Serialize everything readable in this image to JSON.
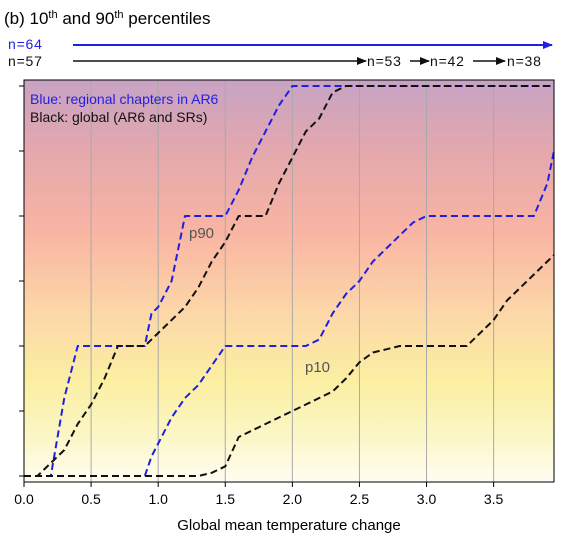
{
  "chart_data": {
    "type": "line",
    "title": {
      "prefix": "(b) 10",
      "sup1": "th",
      "mid": " and 90",
      "sup2": "th",
      "suffix": " percentiles"
    },
    "xlabel": "Global mean temperature change",
    "xlim": [
      0,
      3.95
    ],
    "ylim": [
      0,
      6
    ],
    "xticks": [
      "0.0",
      "0.5",
      "1.0",
      "1.5",
      "2.0",
      "2.5",
      "3.0",
      "3.5"
    ],
    "grid": "vertical",
    "background": "vertical gradient: yellow-white at bottom to pink/salmon to mauve at top",
    "legend": {
      "blue_text": "Blue: regional chapters in AR6",
      "black_text": "Black: global (AR6 and SRs)"
    },
    "counts": {
      "blue": [
        "n=64"
      ],
      "black": [
        "n=57",
        "n=53",
        "n=42",
        "n=38"
      ]
    },
    "labels": {
      "p90": "p90",
      "p10": "p10"
    },
    "series": [
      {
        "name": "Blue: regional chapters in AR6",
        "color": "#1f1fe6",
        "x": [
          0.0,
          0.1,
          0.2,
          0.3,
          0.4,
          0.5,
          0.6,
          0.7,
          0.8,
          0.9,
          0.95,
          1.0,
          1.1,
          1.2,
          1.3,
          1.4,
          1.5,
          1.6,
          1.7,
          1.8,
          1.9,
          2.0,
          2.1,
          2.2,
          2.3,
          2.4,
          2.5,
          2.6,
          2.7,
          2.8,
          2.9,
          3.0,
          3.1,
          3.2,
          3.3,
          3.4,
          3.5,
          3.6,
          3.7,
          3.8,
          3.9,
          3.95
        ],
        "p90": [
          0.0,
          0.0,
          0.0,
          1.2,
          2.0,
          2.0,
          2.0,
          2.0,
          2.0,
          2.0,
          2.5,
          2.6,
          3.0,
          4.0,
          4.0,
          4.0,
          4.0,
          4.4,
          4.9,
          5.3,
          5.7,
          6.0,
          6.0,
          6.0,
          6.0,
          6.0,
          6.0,
          6.0,
          6.0,
          6.0,
          6.0,
          6.0,
          6.0,
          6.0,
          6.0,
          6.0,
          6.0,
          6.0,
          6.0,
          6.0,
          6.0,
          6.0
        ],
        "p10": [
          0.0,
          0.0,
          0.0,
          0.0,
          0.0,
          0.0,
          0.0,
          0.0,
          0.0,
          0.0,
          0.3,
          0.5,
          0.9,
          1.2,
          1.4,
          1.7,
          2.0,
          2.0,
          2.0,
          2.0,
          2.0,
          2.0,
          2.0,
          2.1,
          2.5,
          2.8,
          3.0,
          3.3,
          3.5,
          3.7,
          3.9,
          4.0,
          4.0,
          4.0,
          4.0,
          4.0,
          4.0,
          4.0,
          4.0,
          4.0,
          4.5,
          5.0
        ]
      },
      {
        "name": "Black: global (AR6 and SRs)",
        "color": "#111111",
        "x": [
          0.0,
          0.1,
          0.2,
          0.3,
          0.4,
          0.5,
          0.6,
          0.7,
          0.8,
          0.9,
          1.0,
          1.1,
          1.2,
          1.3,
          1.4,
          1.5,
          1.6,
          1.7,
          1.8,
          1.9,
          2.0,
          2.1,
          2.2,
          2.3,
          2.4,
          2.5,
          2.6,
          2.7,
          2.8,
          2.9,
          3.0,
          3.1,
          3.2,
          3.3,
          3.4,
          3.5,
          3.6,
          3.7,
          3.8,
          3.9,
          3.95
        ],
        "p90": [
          0.0,
          0.0,
          0.2,
          0.4,
          0.8,
          1.1,
          1.5,
          2.0,
          2.0,
          2.0,
          2.2,
          2.4,
          2.6,
          2.9,
          3.3,
          3.6,
          4.0,
          4.0,
          4.0,
          4.5,
          4.9,
          5.3,
          5.5,
          5.9,
          6.0,
          6.0,
          6.0,
          6.0,
          6.0,
          6.0,
          6.0,
          6.0,
          6.0,
          6.0,
          6.0,
          6.0,
          6.0,
          6.0,
          6.0,
          6.0,
          6.0
        ],
        "p10": [
          0.0,
          0.0,
          0.0,
          0.0,
          0.0,
          0.0,
          0.0,
          0.0,
          0.0,
          0.0,
          0.0,
          0.0,
          0.0,
          0.0,
          0.05,
          0.15,
          0.6,
          0.7,
          0.8,
          0.9,
          1.0,
          1.1,
          1.2,
          1.3,
          1.5,
          1.75,
          1.9,
          1.95,
          2.0,
          2.0,
          2.0,
          2.0,
          2.0,
          2.0,
          2.2,
          2.4,
          2.7,
          2.9,
          3.1,
          3.3,
          3.4
        ]
      }
    ]
  }
}
